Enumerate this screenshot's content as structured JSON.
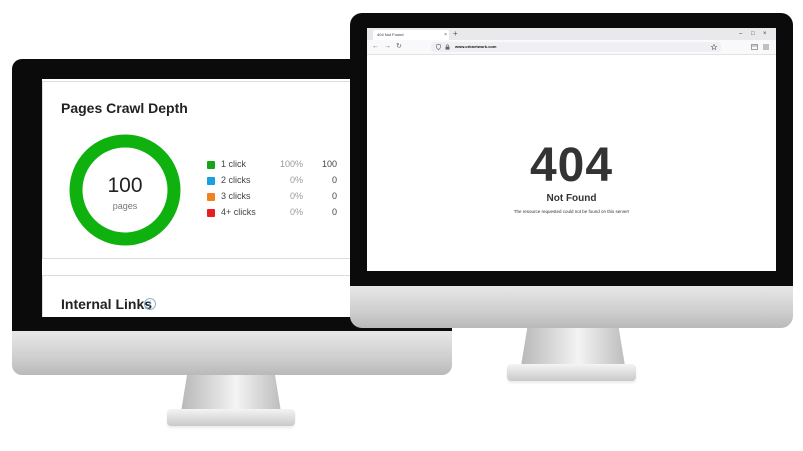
{
  "left_monitor": {
    "crawl_depth": {
      "title": "Pages Crawl Depth",
      "total": "100",
      "total_label": "pages",
      "ring_color": "#0fb10f",
      "legend": [
        {
          "label": "1 click",
          "percent": "100%",
          "value": "100",
          "color": "#16a516"
        },
        {
          "label": "2 clicks",
          "percent": "0%",
          "value": "0",
          "color": "#1a9fe0"
        },
        {
          "label": "3 clicks",
          "percent": "0%",
          "value": "0",
          "color": "#f0831e"
        },
        {
          "label": "4+ clicks",
          "percent": "0%",
          "value": "0",
          "color": "#e81e25"
        }
      ]
    },
    "internal_links": {
      "title": "Internal Links",
      "info_icon": "info-icon"
    }
  },
  "right_monitor": {
    "browser": {
      "tab_title": "404 Not Found",
      "tab_close": "×",
      "new_tab": "+",
      "window_controls": [
        "–",
        "□",
        "×"
      ],
      "nav": {
        "back": "←",
        "forward": "→",
        "reload": "↻"
      },
      "url": "www.orbnetwork.com",
      "icons": [
        "shield-icon",
        "lock-icon",
        "star-icon",
        "extensions-icon",
        "menu-icon"
      ]
    },
    "error": {
      "code": "404",
      "title": "Not Found",
      "message": "The resource requested could not be found on this server!"
    }
  }
}
